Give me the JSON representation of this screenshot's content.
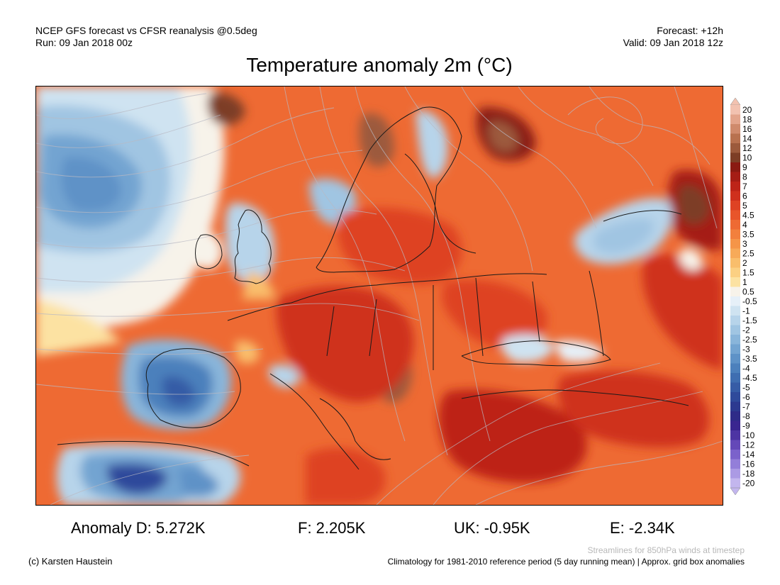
{
  "header": {
    "left_line1": "NCEP GFS forecast vs CFSR reanalysis @0.5deg",
    "left_line2": "Run: 09 Jan 2018 00z",
    "right_line1": "Forecast: +12h",
    "right_line2": "Valid: 09 Jan 2018 12z"
  },
  "title": "Temperature anomaly 2m (°C)",
  "legend": {
    "levels": [
      {
        "label": "20",
        "color": "#f2c2b0"
      },
      {
        "label": "18",
        "color": "#e3a58c"
      },
      {
        "label": "16",
        "color": "#cf8a6c"
      },
      {
        "label": "14",
        "color": "#b8714f"
      },
      {
        "label": "12",
        "color": "#9c5a3c"
      },
      {
        "label": "10",
        "color": "#7d3e26"
      },
      {
        "label": "9",
        "color": "#8a1a12"
      },
      {
        "label": "8",
        "color": "#a51d15"
      },
      {
        "label": "7",
        "color": "#bd2418"
      },
      {
        "label": "6",
        "color": "#cf301d"
      },
      {
        "label": "5",
        "color": "#de4224"
      },
      {
        "label": "4.5",
        "color": "#e8552a"
      },
      {
        "label": "4",
        "color": "#ee6a33"
      },
      {
        "label": "3.5",
        "color": "#f2803d"
      },
      {
        "label": "3",
        "color": "#f59548"
      },
      {
        "label": "2.5",
        "color": "#f7aa59"
      },
      {
        "label": "2",
        "color": "#f9be6c"
      },
      {
        "label": "1.5",
        "color": "#fbd083"
      },
      {
        "label": "1",
        "color": "#fce2a2"
      },
      {
        "label": "0.5",
        "color": "#f7f3ea"
      },
      {
        "label": "-0.5",
        "color": "#e6f0f8"
      },
      {
        "label": "-1",
        "color": "#cfe3f1"
      },
      {
        "label": "-1.5",
        "color": "#b7d4ea"
      },
      {
        "label": "-2",
        "color": "#a0c5e2"
      },
      {
        "label": "-2.5",
        "color": "#89b5da"
      },
      {
        "label": "-3",
        "color": "#73a4d1"
      },
      {
        "label": "-3.5",
        "color": "#5e92c7"
      },
      {
        "label": "-4",
        "color": "#4c80bc"
      },
      {
        "label": "-4.5",
        "color": "#3f6eb1"
      },
      {
        "label": "-5",
        "color": "#365ca6"
      },
      {
        "label": "-6",
        "color": "#2f4a9b"
      },
      {
        "label": "-7",
        "color": "#2c3990"
      },
      {
        "label": "-8",
        "color": "#2e2b88"
      },
      {
        "label": "-9",
        "color": "#3a2690"
      },
      {
        "label": "-10",
        "color": "#4d34a3"
      },
      {
        "label": "-12",
        "color": "#6448b8"
      },
      {
        "label": "-14",
        "color": "#7b62cb"
      },
      {
        "label": "-16",
        "color": "#937ed9"
      },
      {
        "label": "-18",
        "color": "#ab9ae4"
      },
      {
        "label": "-20",
        "color": "#c3b6ee"
      }
    ]
  },
  "anomalies": {
    "d": "Anomaly D: 5.272K",
    "f": "F: 2.205K",
    "uk": "UK: -0.95K",
    "e": "E: -2.34K"
  },
  "footer": {
    "credit": "(c) Karsten Haustein",
    "streamlines_note": "Streamlines for 850hPa winds at timestep",
    "climatology_note": "Climatology for 1981-2010 reference period (5 day running mean) | Approx. grid box anomalies"
  }
}
